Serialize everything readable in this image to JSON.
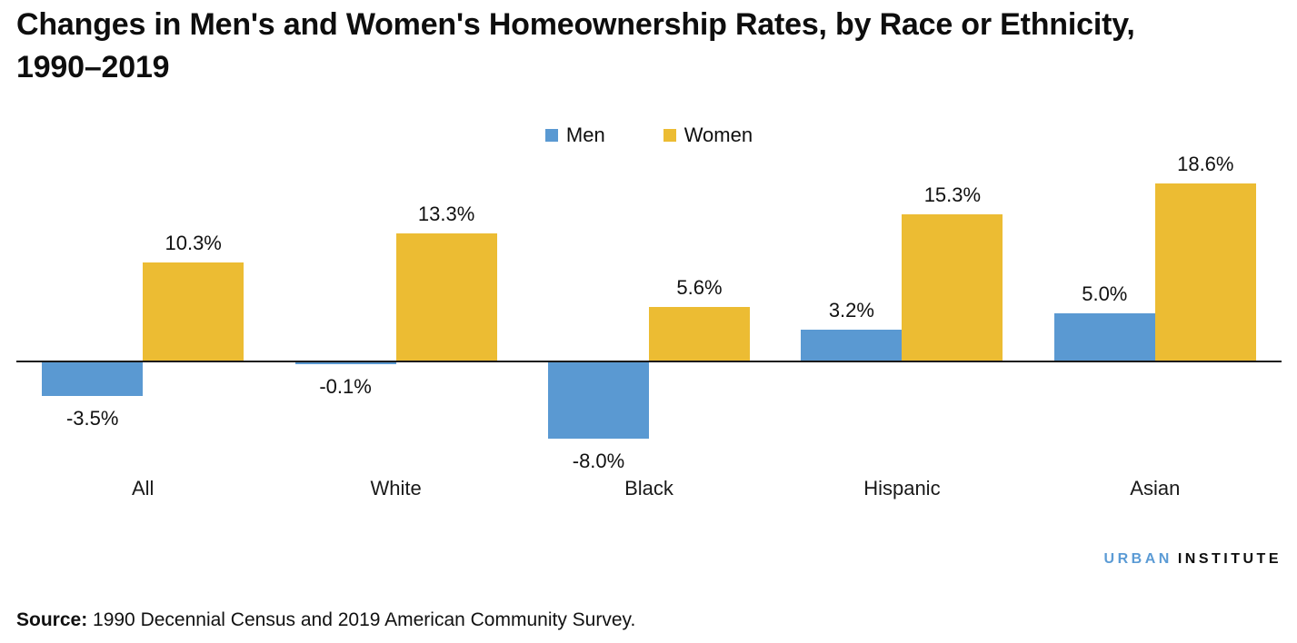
{
  "title": "Changes in Men's and Women's Homeownership Rates, by Race or Ethnicity,\n1990–2019",
  "legend": [
    {
      "label": "Men",
      "color": "#5A99D2"
    },
    {
      "label": "Women",
      "color": "#ECBC33"
    }
  ],
  "chart_data": {
    "type": "bar",
    "title": "Changes in Men's and Women's Homeownership Rates, by Race or Ethnicity, 1990–2019",
    "categories": [
      "All",
      "White",
      "Black",
      "Hispanic",
      "Asian"
    ],
    "series": [
      {
        "name": "Men",
        "color": "#5A99D2",
        "values": [
          -3.5,
          -0.1,
          -8.0,
          3.2,
          5.0
        ],
        "labels": [
          "-3.5%",
          "-0.1%",
          "-8.0%",
          "3.2%",
          "5.0%"
        ]
      },
      {
        "name": "Women",
        "color": "#ECBC33",
        "values": [
          10.3,
          13.3,
          5.6,
          15.3,
          18.6
        ],
        "labels": [
          "10.3%",
          "13.3%",
          "5.6%",
          "15.3%",
          "18.6%"
        ]
      }
    ],
    "xlabel": "",
    "ylabel": "",
    "ylim": [
      -9,
      20
    ],
    "baseline": 0,
    "grid": false,
    "axis_ticks_visible": false,
    "legend_position": "top-center",
    "value_labels_visible": true
  },
  "colors": {
    "men": "#5A99D2",
    "women": "#ECBC33",
    "axis": "#1A1A1A",
    "logo_blue": "#5B9BD5"
  },
  "logo": {
    "part1": "URBAN",
    "part2": "INSTITUTE"
  },
  "source": {
    "label": "Source:",
    "text": " 1990 Decennial Census and 2019 American Community Survey."
  }
}
